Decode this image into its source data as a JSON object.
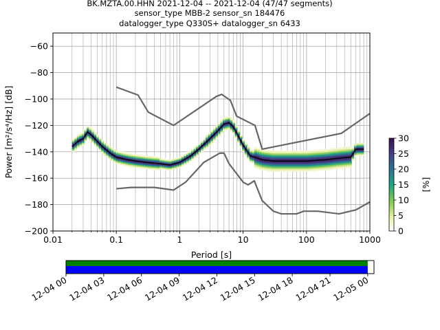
{
  "title_lines": [
    "BK.MZTA.00.HHN   2021-12-04 -- 2021-12-04  (47/47 segments)",
    "sensor_type MBB-2 sensor_sn 184476",
    "datalogger_type Q330S+ datalogger_sn 6433"
  ],
  "chart_data": {
    "type": "heatmap",
    "xlabel": "Period [s]",
    "ylabel": "Power [m²/s⁴/Hz] [dB]",
    "xscale": "log",
    "xlim": [
      0.01,
      1000
    ],
    "ylim": [
      -200,
      -50
    ],
    "x_ticks": [
      0.01,
      0.1,
      1,
      10,
      100,
      1000
    ],
    "x_tick_labels": [
      "0.01",
      "0.1",
      "1",
      "10",
      "100",
      "1000"
    ],
    "y_ticks": [
      -60,
      -80,
      -100,
      -120,
      -140,
      -160,
      -180,
      -200
    ],
    "y_tick_labels": [
      "−60",
      "−80",
      "−100",
      "−120",
      "−140",
      "−160",
      "−180",
      "−200"
    ],
    "grid": true,
    "mean_psd": [
      [
        0.02,
        -136
      ],
      [
        0.025,
        -132
      ],
      [
        0.03,
        -130
      ],
      [
        0.035,
        -125
      ],
      [
        0.04,
        -127
      ],
      [
        0.05,
        -132
      ],
      [
        0.06,
        -136
      ],
      [
        0.08,
        -141
      ],
      [
        0.1,
        -144
      ],
      [
        0.15,
        -146
      ],
      [
        0.2,
        -147
      ],
      [
        0.3,
        -148
      ],
      [
        0.5,
        -149
      ],
      [
        0.7,
        -150
      ],
      [
        1,
        -148
      ],
      [
        1.5,
        -143
      ],
      [
        2,
        -138
      ],
      [
        3,
        -130
      ],
      [
        4,
        -124
      ],
      [
        5,
        -119
      ],
      [
        6,
        -118
      ],
      [
        7,
        -121
      ],
      [
        8,
        -126
      ],
      [
        10,
        -135
      ],
      [
        13,
        -143
      ],
      [
        20,
        -146
      ],
      [
        30,
        -147
      ],
      [
        50,
        -147
      ],
      [
        100,
        -147
      ],
      [
        200,
        -146
      ],
      [
        300,
        -145
      ],
      [
        500,
        -144
      ],
      [
        600,
        -138
      ],
      [
        800,
        -138
      ]
    ],
    "nhnm": [
      [
        0.1,
        -91
      ],
      [
        0.22,
        -97
      ],
      [
        0.32,
        -110
      ],
      [
        0.8,
        -120
      ],
      [
        3.8,
        -98
      ],
      [
        4.6,
        -96.5
      ],
      [
        6.3,
        -101
      ],
      [
        7.9,
        -113
      ],
      [
        15.4,
        -120
      ],
      [
        20,
        -138
      ],
      [
        354.8,
        -126
      ],
      [
        1000,
        -111
      ]
    ],
    "nlnm": [
      [
        0.1,
        -168
      ],
      [
        0.17,
        -167
      ],
      [
        0.4,
        -167
      ],
      [
        0.8,
        -169
      ],
      [
        1.24,
        -163
      ],
      [
        2.4,
        -148
      ],
      [
        4.3,
        -141
      ],
      [
        5,
        -141
      ],
      [
        6,
        -149
      ],
      [
        10,
        -163
      ],
      [
        12,
        -165
      ],
      [
        15,
        -162
      ],
      [
        20,
        -177
      ],
      [
        30,
        -185
      ],
      [
        40,
        -187
      ],
      [
        70,
        -187
      ],
      [
        90,
        -185
      ],
      [
        150,
        -185
      ],
      [
        328,
        -187
      ],
      [
        600,
        -184
      ],
      [
        1000,
        -178
      ]
    ],
    "colorbar": {
      "label": "[%]",
      "range": [
        0,
        30
      ],
      "ticks": [
        0,
        5,
        10,
        15,
        20,
        25,
        30
      ],
      "tick_labels": [
        "0",
        "5",
        "10",
        "15",
        "20",
        "25",
        "30"
      ]
    },
    "coverage": {
      "xlim_hours": [
        0,
        24.5
      ],
      "data_start_hour": 0,
      "data_end_hour": 24,
      "ticks_hours": [
        0,
        3,
        6,
        9,
        12,
        15,
        18,
        21,
        24
      ],
      "tick_labels": [
        "12-04 00",
        "12-04 03",
        "12-04 06",
        "12-04 09",
        "12-04 12",
        "12-04 15",
        "12-04 18",
        "12-04 21",
        "12-05 00"
      ],
      "colors": [
        "#008000",
        "#0000ff"
      ]
    }
  }
}
